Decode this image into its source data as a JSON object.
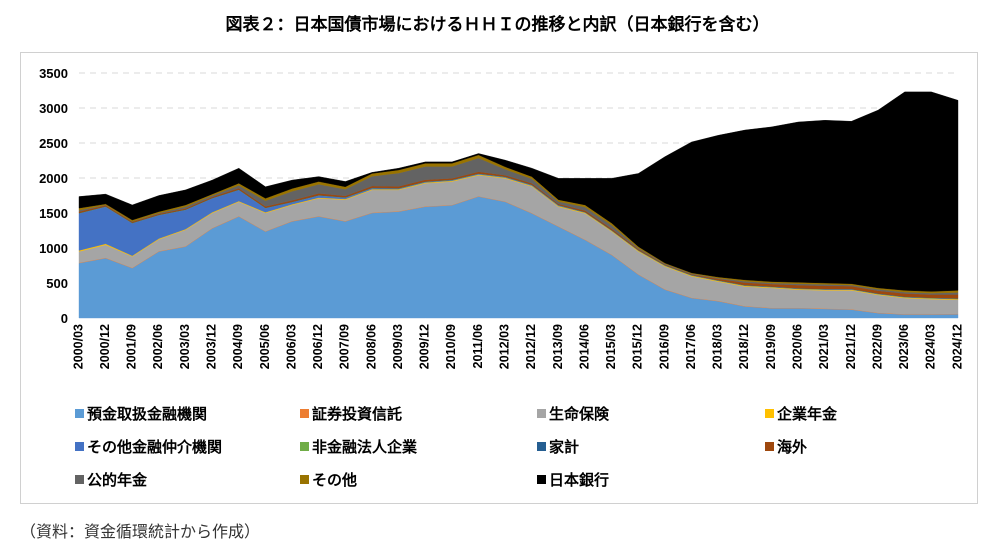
{
  "title": "図表２：日本国債市場におけるＨＨＩの推移と内訳（日本銀行を含む）",
  "source": "（資料：資金循環統計から作成）",
  "chart_data": {
    "type": "area",
    "stacked": true,
    "title": "図表２：日本国債市場におけるＨＨＩの推移と内訳（日本銀行を含む）",
    "xlabel": "",
    "ylabel": "",
    "ylim": [
      0,
      3500
    ],
    "yticks": [
      "0",
      "500",
      "1000",
      "1500",
      "2000",
      "2500",
      "3000",
      "3500"
    ],
    "grid": "horizontal-dashed",
    "legend_position": "bottom",
    "categories": [
      "2000/03",
      "2000/12",
      "2001/09",
      "2002/06",
      "2003/03",
      "2003/12",
      "2004/09",
      "2005/06",
      "2006/03",
      "2006/12",
      "2007/09",
      "2008/06",
      "2009/03",
      "2009/12",
      "2010/09",
      "2011/06",
      "2012/03",
      "2012/12",
      "2013/09",
      "2014/06",
      "2015/03",
      "2015/12",
      "2016/09",
      "2017/06",
      "2018/03",
      "2018/12",
      "2019/09",
      "2020/06",
      "2021/03",
      "2021/12",
      "2022/09",
      "2023/06",
      "2024/03",
      "2024/12"
    ],
    "series": [
      {
        "name": "預金取扱金融機関",
        "color": "#5b9bd5",
        "values": [
          784,
          855,
          712,
          950,
          1020,
          1280,
          1450,
          1235,
          1380,
          1450,
          1380,
          1500,
          1520,
          1590,
          1610,
          1735,
          1660,
          1495,
          1305,
          1115,
          900,
          620,
          405,
          285,
          240,
          165,
          140,
          140,
          130,
          120,
          70,
          50,
          50,
          55
        ]
      },
      {
        "name": "証券投資信託",
        "color": "#ed7d31",
        "values": [
          5,
          5,
          5,
          5,
          5,
          5,
          5,
          5,
          5,
          5,
          5,
          5,
          5,
          5,
          5,
          5,
          5,
          5,
          5,
          5,
          5,
          5,
          5,
          5,
          5,
          5,
          5,
          5,
          5,
          5,
          5,
          5,
          5,
          5
        ]
      },
      {
        "name": "生命保険",
        "color": "#a5a5a5",
        "values": [
          161,
          185,
          163,
          170,
          235,
          215,
          205,
          260,
          230,
          255,
          305,
          325,
          305,
          330,
          335,
          300,
          330,
          380,
          280,
          375,
          330,
          325,
          325,
          305,
          275,
          280,
          285,
          260,
          260,
          270,
          255,
          230,
          215,
          200
        ]
      },
      {
        "name": "企業年金",
        "color": "#ffc000",
        "values": [
          15,
          15,
          10,
          10,
          10,
          10,
          10,
          10,
          10,
          10,
          10,
          10,
          10,
          10,
          10,
          10,
          10,
          10,
          10,
          10,
          10,
          10,
          10,
          10,
          10,
          10,
          10,
          10,
          10,
          10,
          10,
          10,
          10,
          10
        ]
      },
      {
        "name": "その他金融仲介機関",
        "color": "#4472c4",
        "values": [
          530,
          530,
          465,
          335,
          275,
          200,
          160,
          60,
          30,
          30,
          20,
          15,
          10,
          10,
          10,
          10,
          10,
          10,
          10,
          5,
          5,
          5,
          5,
          5,
          5,
          5,
          5,
          5,
          5,
          5,
          5,
          5,
          5,
          5
        ]
      },
      {
        "name": "非金融法人企業",
        "color": "#70ad47",
        "values": [
          3,
          3,
          3,
          3,
          3,
          3,
          3,
          3,
          3,
          3,
          3,
          3,
          3,
          3,
          3,
          3,
          3,
          3,
          3,
          3,
          3,
          3,
          3,
          3,
          3,
          3,
          3,
          3,
          3,
          3,
          3,
          3,
          3,
          3
        ]
      },
      {
        "name": "家計",
        "color": "#255e91",
        "values": [
          2,
          2,
          2,
          2,
          2,
          2,
          2,
          2,
          2,
          2,
          2,
          2,
          2,
          2,
          2,
          2,
          2,
          2,
          2,
          2,
          2,
          2,
          2,
          2,
          2,
          2,
          2,
          2,
          2,
          2,
          2,
          2,
          2,
          2
        ]
      },
      {
        "name": "海外",
        "color": "#9e480e",
        "values": [
          20,
          15,
          15,
          15,
          15,
          15,
          20,
          20,
          20,
          25,
          20,
          25,
          25,
          25,
          20,
          25,
          20,
          20,
          15,
          20,
          20,
          15,
          10,
          10,
          20,
          35,
          35,
          45,
          45,
          40,
          40,
          45,
          45,
          55
        ]
      },
      {
        "name": "公的年金",
        "color": "#636363",
        "values": [
          20,
          5,
          5,
          10,
          25,
          20,
          40,
          80,
          130,
          130,
          95,
          140,
          190,
          190,
          170,
          195,
          85,
          65,
          35,
          50,
          50,
          15,
          10,
          10,
          10,
          20,
          15,
          20,
          20,
          15,
          20,
          20,
          20,
          30
        ]
      },
      {
        "name": "その他",
        "color": "#997300",
        "values": [
          30,
          15,
          20,
          20,
          25,
          20,
          30,
          35,
          40,
          40,
          35,
          40,
          45,
          45,
          45,
          45,
          35,
          30,
          25,
          30,
          30,
          20,
          10,
          10,
          15,
          20,
          20,
          20,
          20,
          20,
          20,
          25,
          25,
          30
        ]
      },
      {
        "name": "日本銀行",
        "color": "#000000",
        "values": [
          165,
          140,
          215,
          230,
          215,
          200,
          215,
          165,
          120,
          70,
          75,
          15,
          25,
          20,
          20,
          20,
          95,
          120,
          305,
          380,
          640,
          1045,
          1520,
          1870,
          2025,
          2140,
          2210,
          2290,
          2325,
          2320,
          2540,
          2835,
          2850,
          2715
        ]
      }
    ]
  }
}
